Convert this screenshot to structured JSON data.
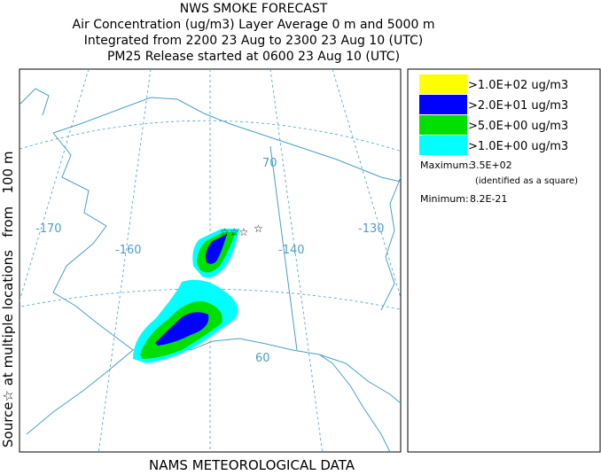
{
  "header": {
    "title": "NWS SMOKE FORECAST",
    "lines": [
      "Air Concentration (ug/m3) Layer Average    0 m and  5000 m",
      "Integrated from 2200 23 Aug to 2300 23 Aug 10 (UTC)",
      "PM25 Release started at 0600 23 Aug 10 (UTC)"
    ]
  },
  "side_label": "Source☆ at multiple locations   from   100 m",
  "map": {
    "labels": [
      "-170",
      "-160",
      "-140",
      "-130",
      "70",
      "60"
    ]
  },
  "legend": {
    "entries": [
      {
        "label": ">1.0E+02 ug/m3",
        "color": "#ffff00"
      },
      {
        "label": ">2.0E+01 ug/m3",
        "color": "#0000ff"
      },
      {
        "label": ">5.0E+00 ug/m3",
        "color": "#00e000"
      },
      {
        "label": ">1.0E+00 ug/m3",
        "color": "#00ffff"
      }
    ],
    "maximum_label": "Maximum:",
    "maximum_value": "3.5E+02",
    "maximum_note": "(identified as a square)",
    "minimum_label": "Minimum:",
    "minimum_value": "8.2E-21"
  },
  "footer": "NAMS METEOROLOGICAL DATA"
}
